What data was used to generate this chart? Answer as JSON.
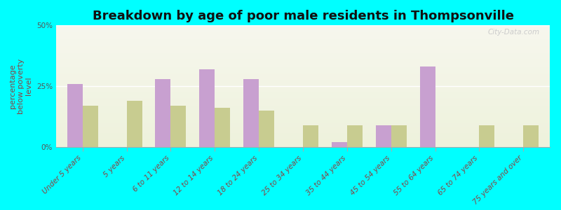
{
  "title": "Breakdown by age of poor male residents in Thompsonville",
  "ylabel": "percentage\nbelow poverty\nlevel",
  "background_color": "#00FFFF",
  "categories": [
    "Under 5 years",
    "5 years",
    "6 to 11 years",
    "12 to 14 years",
    "18 to 24 years",
    "25 to 34 years",
    "35 to 44 years",
    "45 to 54 years",
    "55 to 64 years",
    "65 to 74 years",
    "75 years and over"
  ],
  "thompsonville": [
    26,
    0,
    28,
    32,
    28,
    0,
    2,
    9,
    33,
    0,
    0
  ],
  "illinois": [
    17,
    19,
    17,
    16,
    15,
    9,
    9,
    9,
    0,
    9,
    9
  ],
  "thompsonville_color": "#c8a0d0",
  "illinois_color": "#c8cc90",
  "ylim": [
    0,
    50
  ],
  "yticks": [
    0,
    25,
    50
  ],
  "ytick_labels": [
    "0%",
    "25%",
    "50%"
  ],
  "bar_width": 0.35,
  "watermark": "City-Data.com",
  "title_fontsize": 13,
  "axis_label_fontsize": 8,
  "tick_label_fontsize": 7.5,
  "legend_fontsize": 9,
  "xlim_left": -0.6,
  "xlim_right": 10.6
}
